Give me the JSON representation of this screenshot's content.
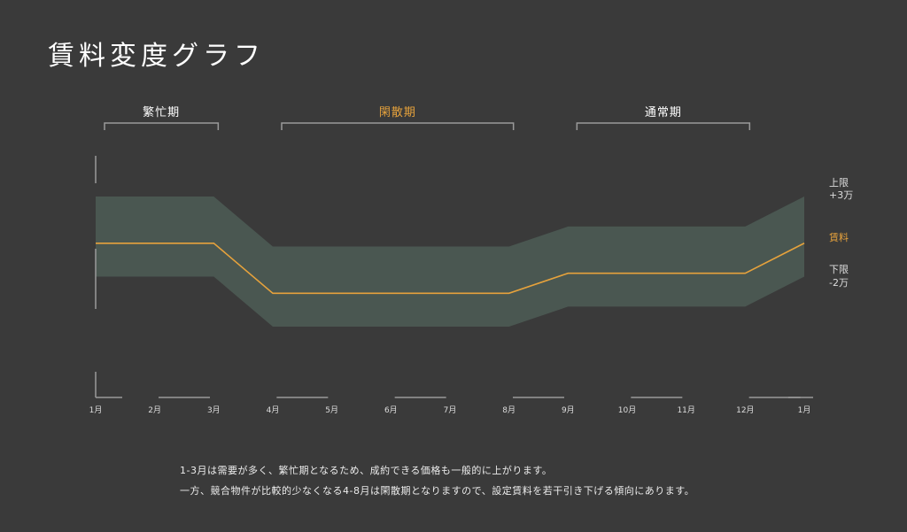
{
  "title": "賃料変度グラフ",
  "chart_data": {
    "type": "area",
    "x_labels": [
      "1月",
      "2月",
      "3月",
      "4月",
      "5月",
      "6月",
      "7月",
      "8月",
      "9月",
      "10月",
      "11月",
      "12月",
      "1月"
    ],
    "periods": [
      {
        "label": "繁忙期",
        "from": "1月",
        "to": "3月",
        "highlight": false
      },
      {
        "label": "閑散期",
        "from": "4月",
        "to": "8月",
        "highlight": true
      },
      {
        "label": "通常期",
        "from": "9月",
        "to": "12月",
        "highlight": false
      }
    ],
    "series": [
      {
        "name": "賃料",
        "values": [
          0,
          0,
          0,
          -1.5,
          -1.5,
          -1.5,
          -1.5,
          -1.5,
          -0.9,
          -0.9,
          -0.9,
          -0.9,
          0
        ]
      },
      {
        "name": "上限 +3万",
        "values": [
          1.4,
          1.4,
          1.4,
          -0.1,
          -0.1,
          -0.1,
          -0.1,
          -0.1,
          0.5,
          0.5,
          0.5,
          0.5,
          1.4
        ]
      },
      {
        "name": "下限 -2万",
        "values": [
          -1,
          -1,
          -1,
          -2.5,
          -2.5,
          -2.5,
          -2.5,
          -2.5,
          -1.9,
          -1.9,
          -1.9,
          -1.9,
          -1
        ]
      }
    ],
    "legend": {
      "upper": [
        "上限",
        "+3万"
      ],
      "rent": "賃料",
      "lower": [
        "下限",
        "-2万"
      ]
    },
    "ylim": [
      -5,
      3
    ],
    "colors": {
      "band": "#4a5751",
      "rent_line": "#e6a23c",
      "highlight_text": "#e6a23c",
      "axis": "#9a9a9a",
      "text": "#dddddd",
      "background": "#3a3a3a"
    }
  },
  "notes": [
    "1-3月は需要が多く、繁忙期となるため、成約できる価格も一般的に上がります。",
    "一方、競合物件が比較的少なくなる4-8月は閑散期となりますので、設定賃料を若干引き下げる傾向にあります。"
  ]
}
